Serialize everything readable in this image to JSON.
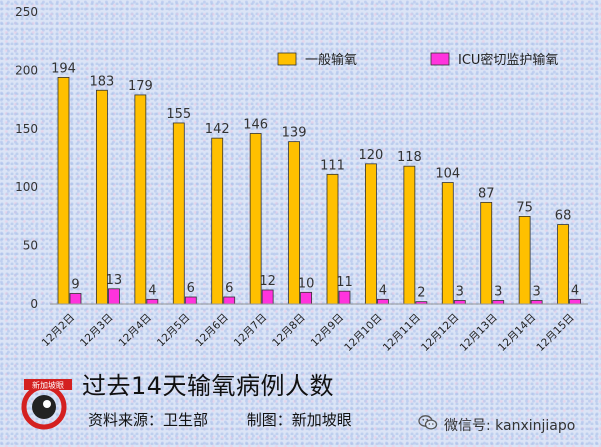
{
  "chart_data": {
    "type": "bar",
    "title": "过去14天输氧病例人数",
    "categories": [
      "12月2日",
      "12月3日",
      "12月4日",
      "12月5日",
      "12月6日",
      "12月7日",
      "12月8日",
      "12月9日",
      "12月10日",
      "12月11日",
      "12月12日",
      "12月13日",
      "12月14日",
      "12月15日"
    ],
    "series": [
      {
        "name": "一般输氧",
        "color": "#ffc000",
        "values": [
          194,
          183,
          179,
          155,
          142,
          146,
          139,
          111,
          120,
          118,
          104,
          87,
          75,
          68
        ]
      },
      {
        "name": "ICU密切监护输氧",
        "color": "#ff33dd",
        "values": [
          9,
          13,
          4,
          6,
          6,
          12,
          10,
          11,
          4,
          2,
          3,
          3,
          3,
          4
        ]
      }
    ],
    "ylim": [
      0,
      250
    ],
    "yticks": [
      0,
      50,
      100,
      150,
      200,
      250
    ],
    "legend_position": "top-right",
    "grid": false
  },
  "footer": {
    "source_label": "资料来源：卫生部",
    "made_by_label": "制图：新加坡眼",
    "logo_text": "新加坡眼",
    "wechat_label": "微信号: kanxinjiapo"
  },
  "icons": {
    "logo": "sg-eye-logo-icon",
    "wechat": "wechat-icon"
  }
}
